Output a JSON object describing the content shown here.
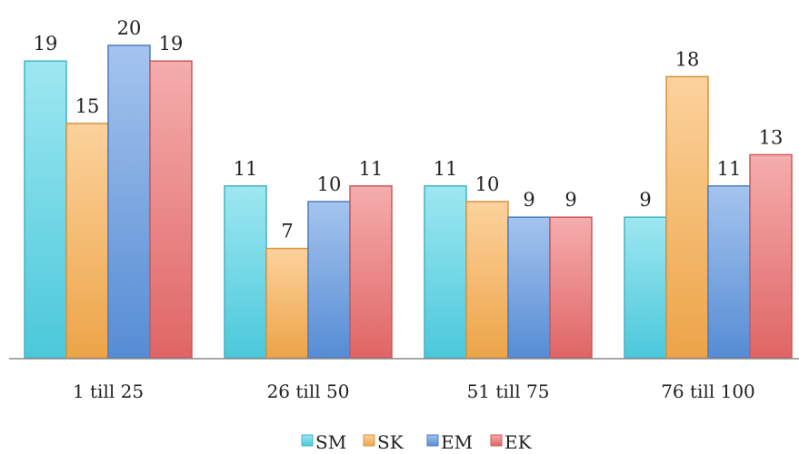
{
  "chart_data": {
    "type": "bar",
    "title": "",
    "xlabel": "",
    "ylabel": "",
    "categories": [
      "1 till 25",
      "26 till 50",
      "51 till 75",
      "76 till 100"
    ],
    "series": [
      {
        "name": "SM",
        "values": [
          19,
          11,
          11,
          9
        ],
        "color": "#4fd3e6"
      },
      {
        "name": "SK",
        "values": [
          15,
          7,
          10,
          18
        ],
        "color": "#f9ad4c"
      },
      {
        "name": "EM",
        "values": [
          20,
          10,
          9,
          11
        ],
        "color": "#5b93e0"
      },
      {
        "name": "EK",
        "values": [
          19,
          11,
          9,
          13
        ],
        "color": "#ec6a6a"
      }
    ],
    "ylim": [
      0,
      20
    ],
    "grid": false,
    "legend_position": "bottom"
  }
}
